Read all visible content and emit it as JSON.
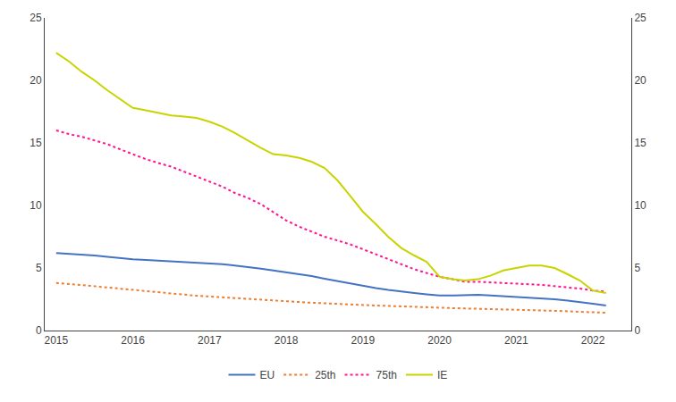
{
  "chart_data": {
    "type": "line",
    "x": [
      2015.0,
      2015.17,
      2015.33,
      2015.5,
      2015.67,
      2015.83,
      2016.0,
      2016.17,
      2016.33,
      2016.5,
      2016.67,
      2016.83,
      2017.0,
      2017.17,
      2017.33,
      2017.5,
      2017.67,
      2017.83,
      2018.0,
      2018.17,
      2018.33,
      2018.5,
      2018.67,
      2018.83,
      2019.0,
      2019.17,
      2019.33,
      2019.5,
      2019.67,
      2019.83,
      2020.0,
      2020.17,
      2020.33,
      2020.5,
      2020.67,
      2020.83,
      2021.0,
      2021.17,
      2021.33,
      2021.5,
      2021.67,
      2021.83,
      2022.0,
      2022.17
    ],
    "series": [
      {
        "name": "EU",
        "color": "#4472C4",
        "line_style": "solid",
        "values": [
          6.2,
          6.15,
          6.1,
          6.0,
          5.9,
          5.8,
          5.7,
          5.65,
          5.6,
          5.55,
          5.5,
          5.45,
          5.4,
          5.3,
          5.2,
          5.1,
          4.95,
          4.8,
          4.65,
          4.5,
          4.35,
          4.15,
          3.95,
          3.75,
          3.55,
          3.4,
          3.25,
          3.1,
          3.0,
          2.9,
          2.8,
          2.8,
          2.85,
          2.85,
          2.8,
          2.75,
          2.7,
          2.65,
          2.6,
          2.5,
          2.4,
          2.3,
          2.15,
          2.0
        ]
      },
      {
        "name": "25th",
        "color": "#ED7D31",
        "line_style": "dotted",
        "values": [
          3.8,
          3.72,
          3.65,
          3.55,
          3.45,
          3.35,
          3.25,
          3.15,
          3.05,
          2.95,
          2.85,
          2.78,
          2.72,
          2.65,
          2.58,
          2.52,
          2.46,
          2.4,
          2.34,
          2.28,
          2.22,
          2.18,
          2.12,
          2.08,
          2.04,
          2.0,
          1.96,
          1.92,
          1.88,
          1.84,
          1.8,
          1.78,
          1.76,
          1.74,
          1.72,
          1.7,
          1.68,
          1.66,
          1.62,
          1.58,
          1.54,
          1.5,
          1.45,
          1.42
        ]
      },
      {
        "name": "75th",
        "color": "#FF1493",
        "line_style": "dotted",
        "values": [
          16.0,
          15.7,
          15.5,
          15.2,
          14.9,
          14.5,
          14.1,
          13.7,
          13.4,
          13.1,
          12.7,
          12.3,
          11.9,
          11.5,
          11.0,
          10.6,
          10.1,
          9.5,
          8.8,
          8.3,
          7.9,
          7.5,
          7.2,
          6.9,
          6.5,
          6.1,
          5.7,
          5.3,
          4.9,
          4.6,
          4.3,
          4.1,
          3.9,
          3.9,
          3.85,
          3.8,
          3.75,
          3.7,
          3.65,
          3.55,
          3.45,
          3.35,
          3.2,
          3.1
        ]
      },
      {
        "name": "IE",
        "color": "#C8D400",
        "line_style": "solid",
        "values": [
          22.2,
          21.5,
          20.7,
          20.0,
          19.2,
          18.5,
          17.8,
          17.6,
          17.4,
          17.2,
          17.1,
          17.0,
          16.7,
          16.3,
          15.8,
          15.2,
          14.6,
          14.1,
          14.0,
          13.8,
          13.5,
          13.0,
          12.0,
          10.8,
          9.5,
          8.5,
          7.5,
          6.6,
          6.0,
          5.5,
          4.3,
          4.1,
          4.0,
          4.1,
          4.4,
          4.8,
          5.0,
          5.2,
          5.2,
          5.0,
          4.5,
          4.0,
          3.2,
          3.0
        ]
      }
    ],
    "xlim": [
      2014.85,
      2022.5
    ],
    "xticks": [
      2015,
      2016,
      2017,
      2018,
      2019,
      2020,
      2021,
      2022
    ],
    "ylim": [
      0,
      25
    ],
    "yticks": [
      0,
      5,
      10,
      15,
      20,
      25
    ],
    "y2lim": [
      0,
      25
    ],
    "y2ticks": [
      0,
      5,
      10,
      15,
      20,
      25
    ],
    "grid": false,
    "legend": "bottom"
  }
}
